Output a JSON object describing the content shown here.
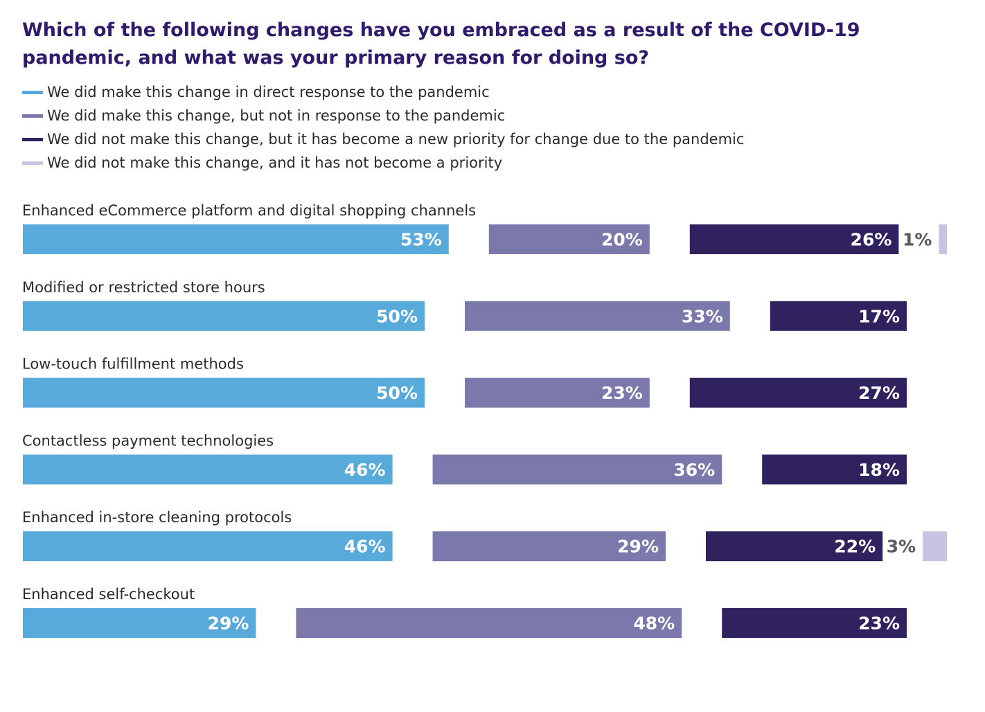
{
  "title": "Which of the following changes have you embraced as a result of the COVID-19 pandemic, and what was your primary reason for doing so?",
  "colors": {
    "s1": "#58aadb",
    "s2": "#7b78ab",
    "s3": "#30225f",
    "s4": "#c8c3e1",
    "label_inside": "#ffffff",
    "label_outside": "#5a5a5a"
  },
  "legend": [
    "We did make this change in direct response to the pandemic",
    "We did make this change, but not in response to the pandemic",
    "We did not make this change, but it has become a new priority for change due to the pandemic",
    "We did not make this change, and it has not become a priority"
  ],
  "chart_data": {
    "type": "bar",
    "orientation": "horizontal",
    "stacked": true,
    "units": "%",
    "categories": [
      "Enhanced eCommerce platform and digital shopping channels",
      "Modified or restricted store hours",
      "Low-touch fulfillment methods",
      "Contactless payment technologies",
      "Enhanced in-store cleaning protocols",
      "Enhanced self-checkout"
    ],
    "series": [
      {
        "name": "We did make this change in direct response to the pandemic",
        "values": [
          53,
          50,
          50,
          46,
          46,
          29
        ]
      },
      {
        "name": "We did make this change, but not in response to the pandemic",
        "values": [
          20,
          33,
          23,
          36,
          29,
          48
        ]
      },
      {
        "name": "We did not make this change, but it has become a new priority for change due to the pandemic",
        "values": [
          26,
          17,
          27,
          18,
          22,
          23
        ]
      },
      {
        "name": "We did not make this change, and it has not become a priority",
        "values": [
          1,
          0,
          0,
          0,
          3,
          0
        ]
      }
    ],
    "legend_position": "top-left",
    "grid": false
  }
}
